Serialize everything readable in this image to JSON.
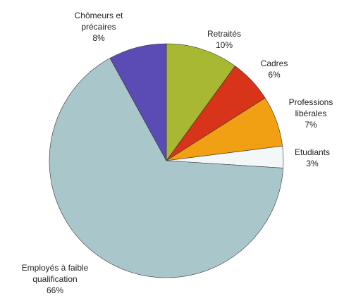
{
  "chart_data": {
    "type": "pie",
    "categories": [
      "Retraités",
      "Cadres",
      "Professions libérales",
      "Etudiants",
      "Employés à faible qualification",
      "Chômeurs et précaires"
    ],
    "values": [
      10,
      6,
      7,
      3,
      66,
      8
    ],
    "value_labels": [
      "10%",
      "6%",
      "7%",
      "3%",
      "66%",
      "8%"
    ],
    "colors": [
      "#a9b832",
      "#d8341a",
      "#f0a012",
      "#f3f7f7",
      "#a9c7cb",
      "#5a4bb5"
    ]
  }
}
